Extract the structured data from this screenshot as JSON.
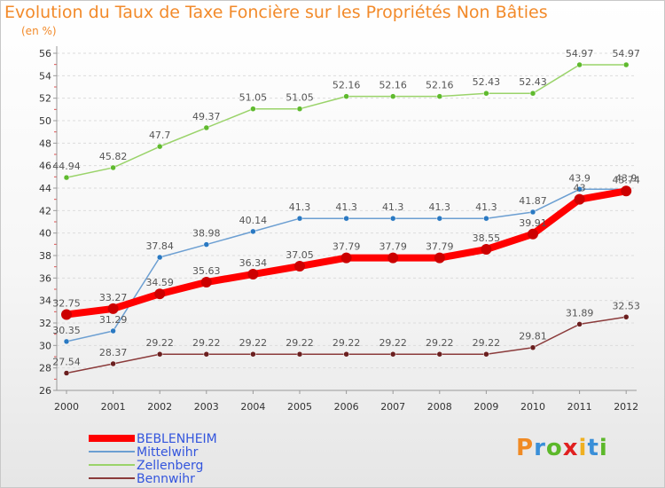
{
  "title": "Evolution du Taux de Taxe Foncière sur les Propriétés Non Bâties",
  "unit_label": "(en %)",
  "logo_text": "Proxiti",
  "chart_data": {
    "type": "line",
    "x": [
      "2000",
      "2001",
      "2002",
      "2003",
      "2004",
      "2005",
      "2006",
      "2007",
      "2008",
      "2009",
      "2010",
      "2011",
      "2012"
    ],
    "ylim": [
      26,
      56
    ],
    "yticks": [
      26,
      28,
      30,
      32,
      34,
      36,
      38,
      40,
      42,
      44,
      46,
      48,
      50,
      52,
      54,
      56
    ],
    "ytick_labels": [
      "26",
      "28",
      "30",
      "32",
      "34",
      "36",
      "38",
      "40",
      "42",
      "44",
      "46",
      "48",
      "50",
      "52",
      "54",
      "56"
    ],
    "grid": "horizontal",
    "legend_position": "bottom-left",
    "series": [
      {
        "name": "BEBLENHEIM",
        "color": "#ff0000",
        "point_color": "#cc0000",
        "values": [
          32.75,
          33.27,
          34.59,
          35.63,
          36.34,
          37.05,
          37.79,
          37.79,
          37.79,
          38.55,
          39.91,
          43.0,
          43.74
        ],
        "labels": [
          "32.75",
          "33.27",
          "34.59",
          "35.63",
          "36.34",
          "37.05",
          "37.79",
          "37.79",
          "37.79",
          "38.55",
          "39.91",
          "43",
          "43.74"
        ]
      },
      {
        "name": "Mittelwihr",
        "color": "#6c9fd2",
        "point_color": "#2a79c2",
        "values": [
          30.35,
          31.29,
          37.84,
          38.98,
          40.14,
          41.3,
          41.3,
          41.3,
          41.3,
          41.3,
          41.87,
          43.9,
          43.9
        ],
        "labels": [
          "30.35",
          "31.29",
          "37.84",
          "38.98",
          "40.14",
          "41.3",
          "41.3",
          "41.3",
          "41.3",
          "41.3",
          "41.87",
          "43.9",
          "43.9"
        ]
      },
      {
        "name": "Zellenberg",
        "color": "#9ad36a",
        "point_color": "#5fba2e",
        "values": [
          44.94,
          45.82,
          47.7,
          49.37,
          51.05,
          51.05,
          52.16,
          52.16,
          52.16,
          52.43,
          52.43,
          54.97,
          54.97
        ],
        "labels": [
          "44.94",
          "45.82",
          "47.7",
          "49.37",
          "51.05",
          "51.05",
          "52.16",
          "52.16",
          "52.16",
          "52.43",
          "52.43",
          "54.97",
          "54.97"
        ]
      },
      {
        "name": "Bennwihr",
        "color": "#8b3b3b",
        "point_color": "#6a1f1f",
        "values": [
          27.54,
          28.37,
          29.22,
          29.22,
          29.22,
          29.22,
          29.22,
          29.22,
          29.22,
          29.22,
          29.81,
          31.89,
          32.53
        ],
        "labels": [
          "27.54",
          "28.37",
          "29.22",
          "29.22",
          "29.22",
          "29.22",
          "29.22",
          "29.22",
          "29.22",
          "29.22",
          "29.81",
          "31.89",
          "32.53"
        ]
      }
    ]
  }
}
